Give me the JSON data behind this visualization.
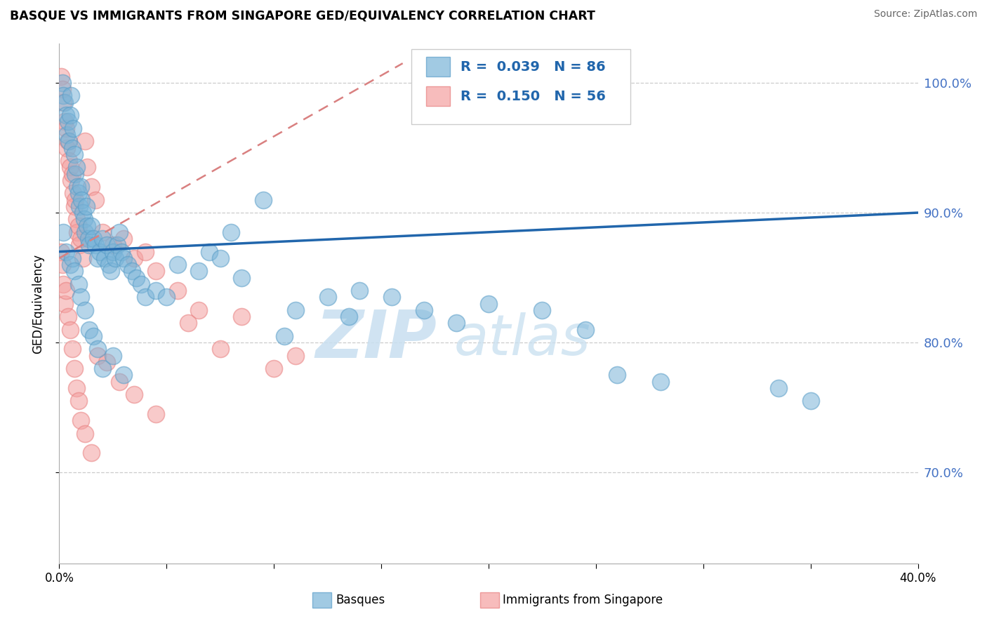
{
  "title": "BASQUE VS IMMIGRANTS FROM SINGAPORE GED/EQUIVALENCY CORRELATION CHART",
  "source": "Source: ZipAtlas.com",
  "ylabel": "GED/Equivalency",
  "xlim": [
    0.0,
    40.0
  ],
  "ylim": [
    63.0,
    103.0
  ],
  "ytick_vals": [
    70.0,
    80.0,
    90.0,
    100.0
  ],
  "ytick_labels": [
    "70.0%",
    "80.0%",
    "90.0%",
    "100.0%"
  ],
  "xtick_vals": [
    0.0,
    5.0,
    10.0,
    15.0,
    20.0,
    25.0,
    30.0,
    35.0,
    40.0
  ],
  "xtick_labels": [
    "0.0%",
    "",
    "",
    "",
    "",
    "",
    "",
    "",
    "40.0%"
  ],
  "blue_color": "#7ab4d8",
  "pink_color": "#f4a0a0",
  "blue_edge": "#5a9ec8",
  "pink_edge": "#e88080",
  "blue_line_color": "#2166ac",
  "pink_line_color": "#d98080",
  "watermark_color": "#c8dff0",
  "watermark": "ZIPatlas",
  "label_blue": "Basques",
  "label_pink": "Immigrants from Singapore",
  "legend_R_blue": "R =  0.039",
  "legend_N_blue": "N = 86",
  "legend_R_pink": "R =  0.150",
  "legend_N_pink": "N = 56",
  "blue_line_x0": 0.0,
  "blue_line_y0": 87.0,
  "blue_line_x1": 40.0,
  "blue_line_y1": 90.0,
  "pink_line_x0": 0.0,
  "pink_line_y0": 86.5,
  "pink_line_x1": 16.0,
  "pink_line_y1": 101.5,
  "blue_x": [
    0.15,
    0.2,
    0.25,
    0.3,
    0.35,
    0.4,
    0.45,
    0.5,
    0.55,
    0.6,
    0.65,
    0.7,
    0.75,
    0.8,
    0.85,
    0.9,
    0.95,
    1.0,
    1.05,
    1.1,
    1.15,
    1.2,
    1.25,
    1.3,
    1.35,
    1.4,
    1.5,
    1.6,
    1.7,
    1.8,
    1.9,
    2.0,
    2.1,
    2.2,
    2.3,
    2.4,
    2.5,
    2.6,
    2.7,
    2.8,
    2.9,
    3.0,
    3.2,
    3.4,
    3.6,
    3.8,
    4.0,
    4.5,
    5.0,
    5.5,
    6.5,
    7.0,
    7.5,
    8.0,
    8.5,
    9.5,
    10.5,
    11.0,
    12.5,
    13.5,
    14.0,
    15.5,
    17.0,
    18.5,
    20.0,
    22.5,
    24.5,
    26.0,
    28.0,
    33.5,
    35.0,
    0.2,
    0.3,
    0.5,
    0.6,
    0.7,
    0.9,
    1.0,
    1.2,
    1.4,
    1.6,
    1.8,
    2.0,
    2.5,
    3.0
  ],
  "blue_y": [
    100.0,
    99.0,
    98.5,
    97.5,
    96.0,
    97.0,
    95.5,
    97.5,
    99.0,
    95.0,
    96.5,
    94.5,
    93.0,
    93.5,
    92.0,
    91.5,
    90.5,
    92.0,
    91.0,
    90.0,
    89.5,
    88.5,
    90.5,
    89.0,
    88.0,
    87.5,
    89.0,
    88.0,
    87.5,
    86.5,
    87.0,
    88.0,
    86.5,
    87.5,
    86.0,
    85.5,
    87.0,
    86.5,
    87.5,
    88.5,
    87.0,
    86.5,
    86.0,
    85.5,
    85.0,
    84.5,
    83.5,
    84.0,
    83.5,
    86.0,
    85.5,
    87.0,
    86.5,
    88.5,
    85.0,
    91.0,
    80.5,
    82.5,
    83.5,
    82.0,
    84.0,
    83.5,
    82.5,
    81.5,
    83.0,
    82.5,
    81.0,
    77.5,
    77.0,
    76.5,
    75.5,
    88.5,
    87.0,
    86.0,
    86.5,
    85.5,
    84.5,
    83.5,
    82.5,
    81.0,
    80.5,
    79.5,
    78.0,
    79.0,
    77.5
  ],
  "pink_x": [
    0.1,
    0.15,
    0.2,
    0.25,
    0.3,
    0.35,
    0.4,
    0.45,
    0.5,
    0.55,
    0.6,
    0.65,
    0.7,
    0.75,
    0.8,
    0.85,
    0.9,
    0.95,
    1.0,
    1.1,
    1.2,
    1.3,
    1.5,
    1.7,
    2.0,
    2.5,
    3.0,
    3.5,
    4.0,
    4.5,
    5.5,
    6.5,
    8.5,
    0.1,
    0.15,
    0.2,
    0.25,
    0.3,
    0.4,
    0.5,
    0.6,
    0.7,
    0.8,
    0.9,
    1.0,
    1.2,
    1.5,
    1.8,
    2.2,
    2.8,
    3.5,
    4.5,
    6.0,
    7.5,
    10.0,
    11.0
  ],
  "pink_y": [
    100.5,
    99.5,
    98.5,
    97.0,
    96.5,
    95.0,
    95.5,
    94.0,
    93.5,
    92.5,
    93.0,
    91.5,
    90.5,
    91.0,
    89.5,
    88.5,
    89.0,
    87.5,
    88.0,
    86.5,
    95.5,
    93.5,
    92.0,
    91.0,
    88.5,
    87.5,
    88.0,
    86.5,
    87.0,
    85.5,
    84.0,
    82.5,
    82.0,
    87.0,
    86.0,
    84.5,
    83.0,
    84.0,
    82.0,
    81.0,
    79.5,
    78.0,
    76.5,
    75.5,
    74.0,
    73.0,
    71.5,
    79.0,
    78.5,
    77.0,
    76.0,
    74.5,
    81.5,
    79.5,
    78.0,
    79.0
  ]
}
